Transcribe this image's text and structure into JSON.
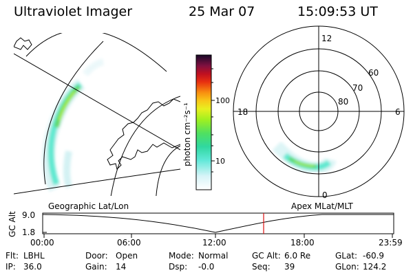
{
  "header": {
    "instrument": "Ultraviolet Imager",
    "date": "25 Mar 07",
    "time": "15:09:53 UT"
  },
  "colorbar": {
    "unit_label": "photon cm⁻²s⁻¹",
    "ticks": [
      "100",
      "10"
    ]
  },
  "polar_plot": {
    "mlt_labels": [
      "12",
      "18",
      "6",
      "0"
    ],
    "mlat_labels": [
      "60",
      "70",
      "80"
    ]
  },
  "map_labels": {
    "left": "Geographic Lat/Lon",
    "right": "Apex MLat/MLT"
  },
  "altitude_panel": {
    "ylabel": "GC Alt",
    "y_ticks": [
      "9.0",
      "1.8"
    ],
    "time_ticks": [
      "00:00",
      "06:00",
      "12:00",
      "18:00",
      "23:59"
    ],
    "current_time_marker": "15:09:53",
    "marker_color": "#dd1111"
  },
  "info": {
    "row1": [
      {
        "label": "Flt:",
        "value": "LBHL"
      },
      {
        "label": "Door:",
        "value": "Open"
      },
      {
        "label": "Mode:",
        "value": "Normal"
      },
      {
        "label": "GC Alt:",
        "value": "6.0 Re"
      },
      {
        "label": "GLat:",
        "value": "-60.9"
      }
    ],
    "row2": [
      {
        "label": "IP:",
        "value": "36.0"
      },
      {
        "label": "Gain:",
        "value": "14"
      },
      {
        "label": "Dsp:",
        "value": "-0.0"
      },
      {
        "label": "Seq:",
        "value": "39"
      },
      {
        "label": "GLon:",
        "value": "124.2"
      }
    ]
  }
}
